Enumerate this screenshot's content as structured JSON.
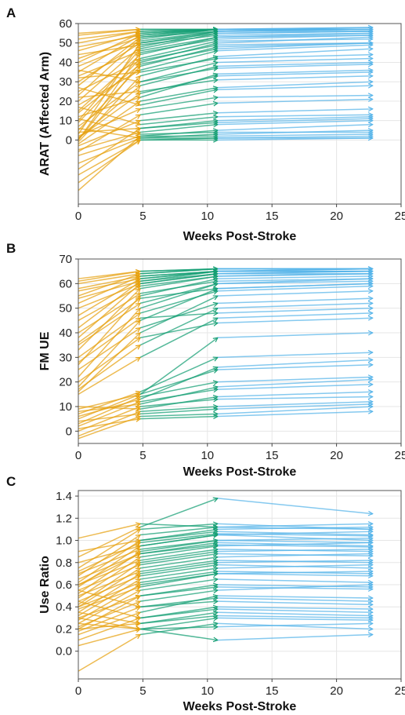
{
  "figure": {
    "panels": [
      "A",
      "B",
      "C"
    ]
  },
  "chart_data": [
    {
      "type": "line",
      "panel_label": "A",
      "xlabel": "Weeks Post-Stroke",
      "ylabel": "ARAT (Affected Arm)",
      "xlim": [
        0,
        25
      ],
      "ylim": [
        -33,
        60
      ],
      "x_ticks": [
        0,
        5,
        10,
        15,
        20,
        25
      ],
      "y_ticks": [
        0,
        10,
        20,
        30,
        40,
        50,
        60
      ],
      "grid": true,
      "segment_colors": [
        "#e6a10f",
        "#139e73",
        "#56b4e9"
      ],
      "timepoints": [
        0,
        4.8,
        10.8,
        22.8
      ],
      "series": [
        {
          "values": [
            -26,
            2,
            2,
            3
          ]
        },
        {
          "values": [
            -18,
            0,
            1,
            2
          ]
        },
        {
          "values": [
            -12,
            1,
            3,
            5
          ]
        },
        {
          "values": [
            -8,
            2,
            5,
            8
          ]
        },
        {
          "values": [
            -5,
            4,
            8,
            10
          ]
        },
        {
          "values": [
            -3,
            10,
            14,
            16
          ]
        },
        {
          "values": [
            -2,
            20,
            27,
            30
          ]
        },
        {
          "values": [
            -1,
            33,
            43,
            47
          ]
        },
        {
          "values": [
            0,
            45,
            52,
            54
          ]
        },
        {
          "values": [
            0,
            40,
            50,
            53
          ]
        },
        {
          "values": [
            1,
            28,
            38,
            40
          ]
        },
        {
          "values": [
            2,
            16,
            22,
            23
          ]
        },
        {
          "values": [
            3,
            50,
            56,
            57
          ]
        },
        {
          "values": [
            4,
            6,
            10,
            12
          ]
        },
        {
          "values": [
            5,
            38,
            48,
            50
          ]
        },
        {
          "values": [
            7,
            30,
            40,
            42
          ]
        },
        {
          "values": [
            9,
            42,
            51,
            52
          ]
        },
        {
          "values": [
            10,
            47,
            55,
            56
          ]
        },
        {
          "values": [
            12,
            22,
            34,
            36
          ]
        },
        {
          "values": [
            15,
            44,
            53,
            54
          ]
        },
        {
          "values": [
            18,
            36,
            46,
            49
          ]
        },
        {
          "values": [
            20,
            48,
            56,
            57
          ]
        },
        {
          "values": [
            23,
            52,
            57,
            58
          ]
        },
        {
          "values": [
            25,
            41,
            49,
            50
          ]
        },
        {
          "values": [
            28,
            53,
            57,
            58
          ]
        },
        {
          "values": [
            30,
            50,
            55,
            56
          ]
        },
        {
          "values": [
            33,
            46,
            53,
            55
          ]
        },
        {
          "values": [
            35,
            54,
            57,
            57
          ]
        },
        {
          "values": [
            38,
            51,
            56,
            57
          ]
        },
        {
          "values": [
            40,
            55,
            57,
            57
          ]
        },
        {
          "values": [
            42,
            53,
            56,
            56
          ]
        },
        {
          "values": [
            44,
            49,
            54,
            55
          ]
        },
        {
          "values": [
            46,
            55,
            57,
            57
          ]
        },
        {
          "values": [
            48,
            54,
            57,
            57
          ]
        },
        {
          "values": [
            50,
            56,
            57,
            57
          ]
        },
        {
          "values": [
            52,
            56,
            57,
            57
          ]
        },
        {
          "values": [
            54,
            57,
            57,
            57
          ]
        },
        {
          "values": [
            55,
            57,
            57,
            57
          ]
        },
        {
          "values": [
            6,
            1,
            1,
            1
          ]
        },
        {
          "values": [
            11,
            3,
            4,
            4
          ]
        },
        {
          "values": [
            17,
            8,
            12,
            13
          ]
        },
        {
          "values": [
            22,
            25,
            31,
            33
          ]
        },
        {
          "values": [
            27,
            18,
            26,
            28
          ]
        },
        {
          "values": [
            32,
            35,
            42,
            44
          ]
        },
        {
          "values": [
            36,
            30,
            37,
            39
          ]
        },
        {
          "values": [
            -22,
            0,
            0,
            1
          ]
        },
        {
          "values": [
            -15,
            6,
            9,
            11
          ]
        },
        {
          "values": [
            -6,
            13,
            19,
            21
          ]
        },
        {
          "values": [
            1,
            24,
            33,
            35
          ]
        },
        {
          "values": [
            14,
            39,
            47,
            50
          ]
        }
      ]
    },
    {
      "type": "line",
      "panel_label": "B",
      "xlabel": "Weeks Post-Stroke",
      "ylabel": "FM UE",
      "xlim": [
        0,
        25
      ],
      "ylim": [
        -5,
        70
      ],
      "x_ticks": [
        0,
        5,
        10,
        15,
        20,
        25
      ],
      "y_ticks": [
        0,
        10,
        20,
        30,
        40,
        50,
        60,
        70
      ],
      "grid": true,
      "segment_colors": [
        "#e6a10f",
        "#139e73",
        "#56b4e9"
      ],
      "timepoints": [
        0,
        4.8,
        10.8,
        22.8
      ],
      "series": [
        {
          "values": [
            -3,
            6,
            7,
            10
          ]
        },
        {
          "values": [
            -2,
            8,
            10,
            12
          ]
        },
        {
          "values": [
            0,
            10,
            13,
            14
          ]
        },
        {
          "values": [
            2,
            12,
            17,
            19
          ]
        },
        {
          "values": [
            3,
            14,
            20,
            22
          ]
        },
        {
          "values": [
            5,
            15,
            25,
            27
          ]
        },
        {
          "values": [
            6,
            13,
            26,
            29
          ]
        },
        {
          "values": [
            7,
            16,
            30,
            32
          ]
        },
        {
          "values": [
            8,
            11,
            18,
            21
          ]
        },
        {
          "values": [
            9,
            15,
            38,
            40
          ]
        },
        {
          "values": [
            10,
            9,
            14,
            16
          ]
        },
        {
          "values": [
            15,
            30,
            46,
            48
          ]
        },
        {
          "values": [
            16,
            40,
            55,
            57
          ]
        },
        {
          "values": [
            17,
            35,
            50,
            52
          ]
        },
        {
          "values": [
            18,
            45,
            58,
            60
          ]
        },
        {
          "values": [
            22,
            50,
            60,
            61
          ]
        },
        {
          "values": [
            25,
            42,
            52,
            54
          ]
        },
        {
          "values": [
            27,
            55,
            62,
            63
          ]
        },
        {
          "values": [
            30,
            48,
            57,
            59
          ]
        },
        {
          "values": [
            33,
            58,
            63,
            64
          ]
        },
        {
          "values": [
            35,
            52,
            60,
            62
          ]
        },
        {
          "values": [
            38,
            60,
            64,
            65
          ]
        },
        {
          "values": [
            40,
            56,
            61,
            62
          ]
        },
        {
          "values": [
            42,
            61,
            65,
            65
          ]
        },
        {
          "values": [
            45,
            59,
            63,
            64
          ]
        },
        {
          "values": [
            47,
            62,
            65,
            65
          ]
        },
        {
          "values": [
            50,
            60,
            64,
            65
          ]
        },
        {
          "values": [
            52,
            63,
            65,
            66
          ]
        },
        {
          "values": [
            54,
            61,
            64,
            64
          ]
        },
        {
          "values": [
            55,
            64,
            66,
            66
          ]
        },
        {
          "values": [
            57,
            62,
            65,
            65
          ]
        },
        {
          "values": [
            58,
            63,
            65,
            66
          ]
        },
        {
          "values": [
            60,
            64,
            66,
            66
          ]
        },
        {
          "values": [
            61,
            65,
            66,
            66
          ]
        },
        {
          "values": [
            62,
            65,
            66,
            66
          ]
        },
        {
          "values": [
            4,
            7,
            9,
            11
          ]
        },
        {
          "values": [
            1,
            5,
            6,
            8
          ]
        },
        {
          "values": [
            20,
            38,
            44,
            46
          ]
        },
        {
          "values": [
            28,
            46,
            48,
            50
          ]
        },
        {
          "values": [
            36,
            54,
            58,
            60
          ]
        }
      ]
    },
    {
      "type": "line",
      "panel_label": "C",
      "xlabel": "Weeks Post-Stroke",
      "ylabel": "Use Ratio",
      "xlim": [
        0,
        25
      ],
      "ylim": [
        -0.25,
        1.45
      ],
      "x_ticks": [
        0,
        5,
        10,
        15,
        20,
        25
      ],
      "y_ticks": [
        0.0,
        0.2,
        0.4,
        0.6,
        0.8,
        1.0,
        1.2,
        1.4
      ],
      "grid": true,
      "segment_colors": [
        "#e6a10f",
        "#139e73",
        "#56b4e9"
      ],
      "timepoints": [
        0,
        4.8,
        10.8,
        22.8
      ],
      "series": [
        {
          "values": [
            -0.18,
            0.15,
            0.25,
            0.2
          ]
        },
        {
          "values": [
            0.05,
            0.2,
            0.3,
            0.28
          ]
        },
        {
          "values": [
            0.1,
            0.3,
            0.4,
            0.38
          ]
        },
        {
          "values": [
            0.15,
            0.35,
            0.5,
            0.48
          ]
        },
        {
          "values": [
            0.18,
            0.4,
            0.45,
            0.42
          ]
        },
        {
          "values": [
            0.2,
            0.5,
            0.6,
            0.58
          ]
        },
        {
          "values": [
            0.22,
            0.45,
            0.55,
            0.6
          ]
        },
        {
          "values": [
            0.25,
            0.55,
            0.65,
            0.62
          ]
        },
        {
          "values": [
            0.28,
            0.6,
            0.7,
            0.72
          ]
        },
        {
          "values": [
            0.3,
            0.5,
            0.58,
            0.56
          ]
        },
        {
          "values": [
            0.32,
            0.65,
            0.75,
            0.78
          ]
        },
        {
          "values": [
            0.35,
            0.7,
            0.8,
            0.82
          ]
        },
        {
          "values": [
            0.38,
            0.58,
            0.7,
            0.68
          ]
        },
        {
          "values": [
            0.4,
            0.75,
            0.85,
            0.88
          ]
        },
        {
          "values": [
            0.42,
            0.8,
            0.9,
            0.92
          ]
        },
        {
          "values": [
            0.45,
            0.68,
            0.78,
            0.75
          ]
        },
        {
          "values": [
            0.48,
            0.85,
            0.95,
            0.98
          ]
        },
        {
          "values": [
            0.5,
            0.72,
            0.82,
            0.8
          ]
        },
        {
          "values": [
            0.52,
            0.9,
            1.0,
            1.02
          ]
        },
        {
          "values": [
            0.55,
            0.78,
            0.88,
            0.86
          ]
        },
        {
          "values": [
            0.58,
            0.95,
            1.05,
            1.08
          ]
        },
        {
          "values": [
            0.6,
            0.82,
            0.92,
            0.9
          ]
        },
        {
          "values": [
            0.62,
            1.0,
            1.1,
            1.12
          ]
        },
        {
          "values": [
            0.65,
            0.88,
            0.98,
            0.95
          ]
        },
        {
          "values": [
            0.68,
            1.05,
            1.12,
            1.15
          ]
        },
        {
          "values": [
            0.7,
            0.92,
            1.0,
            0.98
          ]
        },
        {
          "values": [
            0.75,
            1.1,
            1.15,
            1.1
          ]
        },
        {
          "values": [
            0.8,
            0.95,
            1.05,
            1.0
          ]
        },
        {
          "values": [
            0.85,
            1.12,
            1.38,
            1.24
          ]
        },
        {
          "values": [
            0.9,
            1.0,
            1.08,
            1.05
          ]
        },
        {
          "values": [
            1.02,
            1.15,
            1.12,
            1.1
          ]
        },
        {
          "values": [
            0.25,
            0.2,
            0.1,
            0.15
          ]
        },
        {
          "values": [
            0.35,
            0.25,
            0.32,
            0.3
          ]
        },
        {
          "values": [
            0.45,
            0.3,
            0.38,
            0.35
          ]
        },
        {
          "values": [
            0.55,
            0.4,
            0.48,
            0.45
          ]
        },
        {
          "values": [
            0.3,
            0.2,
            0.22,
            0.25
          ]
        },
        {
          "values": [
            0.2,
            0.25,
            0.35,
            0.32
          ]
        },
        {
          "values": [
            0.4,
            0.62,
            0.72,
            0.7
          ]
        },
        {
          "values": [
            0.6,
            0.88,
            0.96,
            0.94
          ]
        },
        {
          "values": [
            0.72,
            0.98,
            1.06,
            1.04
          ]
        }
      ]
    }
  ]
}
